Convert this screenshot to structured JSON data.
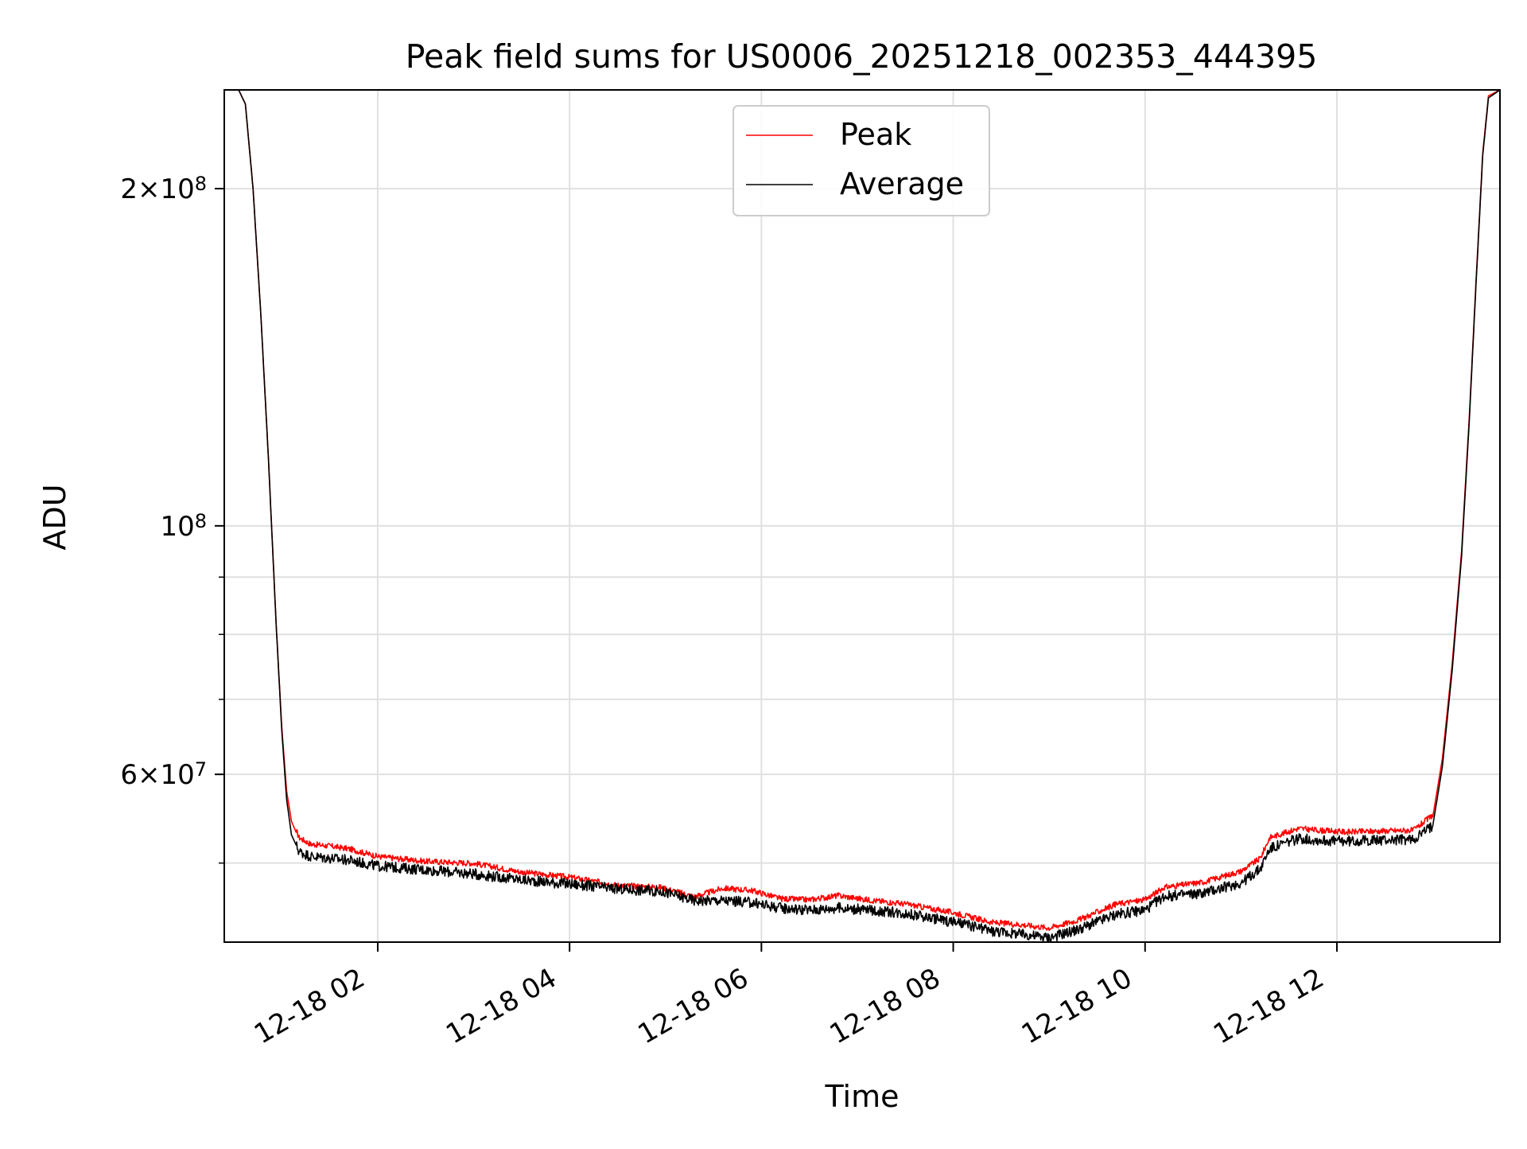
{
  "chart_data": {
    "type": "line",
    "title": "Peak field sums for US0006_20251218_002353_444395",
    "xlabel": "Time",
    "ylabel": "ADU",
    "yscale": "log",
    "grid": true,
    "legend_position": "upper-center",
    "x_unit": "hours since 2025-12-18 00:00",
    "xlim": [
      0.4,
      13.7
    ],
    "ylim": [
      42500000,
      245000000
    ],
    "x_ticks": [
      {
        "value": 2,
        "label": "12-18 02"
      },
      {
        "value": 4,
        "label": "12-18 04"
      },
      {
        "value": 6,
        "label": "12-18 06"
      },
      {
        "value": 8,
        "label": "12-18 08"
      },
      {
        "value": 10,
        "label": "12-18 10"
      },
      {
        "value": 12,
        "label": "12-18 12"
      }
    ],
    "y_major_ticks": [
      {
        "value": 200000000,
        "mant": "2",
        "exp": "8"
      },
      {
        "value": 100000000,
        "mant": "",
        "exp": "8"
      },
      {
        "value": 60000000,
        "mant": "6",
        "exp": "7"
      }
    ],
    "y_minor_ticks": [
      50000000,
      70000000,
      80000000,
      90000000
    ],
    "series": [
      {
        "name": "Peak",
        "color": "#ff0000",
        "points": [
          [
            0.4,
            245000000
          ],
          [
            0.55,
            245000000
          ],
          [
            0.62,
            238000000
          ],
          [
            0.7,
            200000000
          ],
          [
            0.78,
            155000000
          ],
          [
            0.86,
            115000000
          ],
          [
            0.94,
            82000000
          ],
          [
            1.0,
            66000000
          ],
          [
            1.05,
            58000000
          ],
          [
            1.1,
            54500000
          ],
          [
            1.18,
            52500000
          ],
          [
            1.3,
            51800000
          ],
          [
            1.5,
            51600000
          ],
          [
            1.7,
            51300000
          ],
          [
            2.0,
            50500000
          ],
          [
            2.5,
            50000000
          ],
          [
            3.0,
            49800000
          ],
          [
            3.5,
            48900000
          ],
          [
            4.0,
            48400000
          ],
          [
            4.5,
            47600000
          ],
          [
            4.95,
            47400000
          ],
          [
            5.3,
            46500000
          ],
          [
            5.6,
            47300000
          ],
          [
            5.9,
            47100000
          ],
          [
            6.2,
            46300000
          ],
          [
            6.5,
            46200000
          ],
          [
            6.8,
            46600000
          ],
          [
            7.1,
            46200000
          ],
          [
            7.5,
            45800000
          ],
          [
            8.0,
            45000000
          ],
          [
            8.4,
            44100000
          ],
          [
            8.7,
            43900000
          ],
          [
            9.0,
            43600000
          ],
          [
            9.3,
            44300000
          ],
          [
            9.7,
            45800000
          ],
          [
            10.0,
            46200000
          ],
          [
            10.2,
            47400000
          ],
          [
            10.6,
            47900000
          ],
          [
            11.0,
            49000000
          ],
          [
            11.2,
            50300000
          ],
          [
            11.3,
            52500000
          ],
          [
            11.6,
            53500000
          ],
          [
            11.8,
            53300000
          ],
          [
            12.1,
            53100000
          ],
          [
            12.4,
            53200000
          ],
          [
            12.8,
            53300000
          ],
          [
            13.0,
            55000000
          ],
          [
            13.1,
            62000000
          ],
          [
            13.2,
            75000000
          ],
          [
            13.3,
            95000000
          ],
          [
            13.38,
            125000000
          ],
          [
            13.45,
            165000000
          ],
          [
            13.52,
            215000000
          ],
          [
            13.58,
            242000000
          ],
          [
            13.7,
            245000000
          ]
        ]
      },
      {
        "name": "Average",
        "color": "#000000",
        "points": [
          [
            0.4,
            245000000
          ],
          [
            0.55,
            245000000
          ],
          [
            0.62,
            238000000
          ],
          [
            0.7,
            200000000
          ],
          [
            0.78,
            155000000
          ],
          [
            0.86,
            115000000
          ],
          [
            0.94,
            82000000
          ],
          [
            1.0,
            65500000
          ],
          [
            1.05,
            57000000
          ],
          [
            1.1,
            53000000
          ],
          [
            1.18,
            51200000
          ],
          [
            1.3,
            50700000
          ],
          [
            1.5,
            50500000
          ],
          [
            1.7,
            50300000
          ],
          [
            2.0,
            49700000
          ],
          [
            2.5,
            49300000
          ],
          [
            3.0,
            48900000
          ],
          [
            3.5,
            48300000
          ],
          [
            4.0,
            47900000
          ],
          [
            4.5,
            47400000
          ],
          [
            4.95,
            47200000
          ],
          [
            5.3,
            46300000
          ],
          [
            5.6,
            46300000
          ],
          [
            5.9,
            46100000
          ],
          [
            6.2,
            45600000
          ],
          [
            6.5,
            45400000
          ],
          [
            6.8,
            45600000
          ],
          [
            7.1,
            45400000
          ],
          [
            7.5,
            45100000
          ],
          [
            8.0,
            44300000
          ],
          [
            8.4,
            43500000
          ],
          [
            8.7,
            43200000
          ],
          [
            9.0,
            42900000
          ],
          [
            9.3,
            43600000
          ],
          [
            9.7,
            45000000
          ],
          [
            10.0,
            45400000
          ],
          [
            10.2,
            46700000
          ],
          [
            10.6,
            47000000
          ],
          [
            11.0,
            48000000
          ],
          [
            11.2,
            49400000
          ],
          [
            11.3,
            51500000
          ],
          [
            11.6,
            52600000
          ],
          [
            11.8,
            52400000
          ],
          [
            12.1,
            52300000
          ],
          [
            12.4,
            52400000
          ],
          [
            12.8,
            52500000
          ],
          [
            13.0,
            54000000
          ],
          [
            13.1,
            61000000
          ],
          [
            13.2,
            74000000
          ],
          [
            13.3,
            94000000
          ],
          [
            13.38,
            124000000
          ],
          [
            13.45,
            164000000
          ],
          [
            13.52,
            214000000
          ],
          [
            13.58,
            241000000
          ],
          [
            13.7,
            245000000
          ]
        ]
      }
    ]
  }
}
